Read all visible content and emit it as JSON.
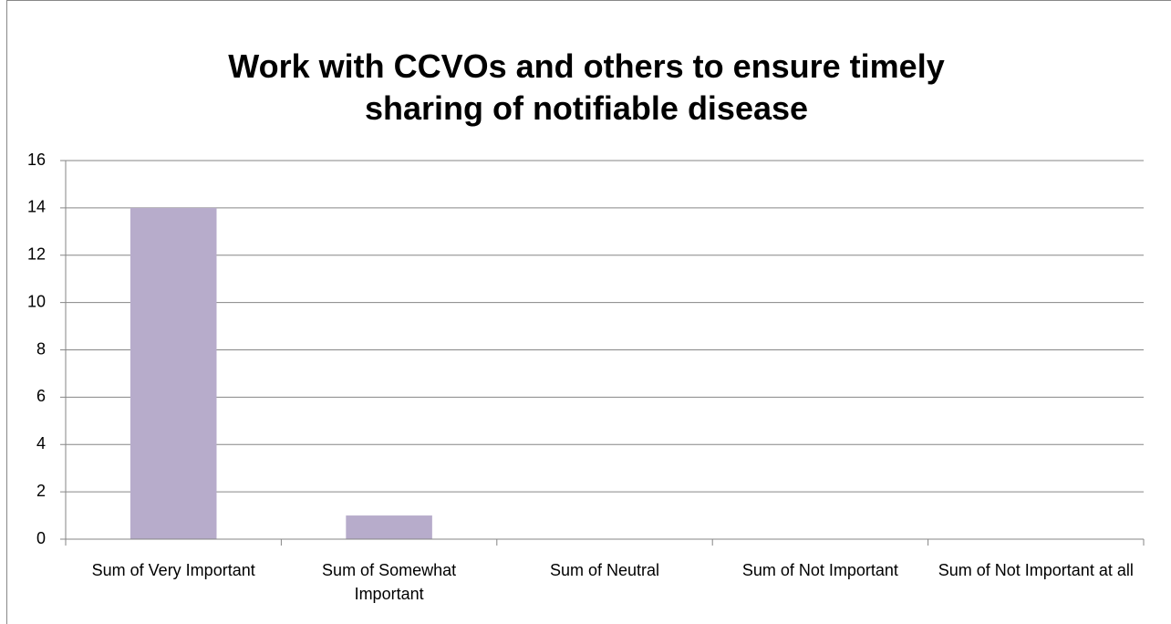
{
  "chart_data": {
    "type": "bar",
    "title": "Work with CCVOs and others to ensure timely sharing of notifiable disease",
    "categories": [
      "Sum of Very Important",
      "Sum of Somewhat Important",
      "Sum of Neutral",
      "Sum of Not Important",
      "Sum of Not Important at all"
    ],
    "values": [
      14,
      1,
      0,
      0,
      0
    ],
    "color": "#b7accb",
    "ylim": [
      0,
      16
    ],
    "yticks": [
      0,
      2,
      4,
      6,
      8,
      10,
      12,
      14,
      16
    ],
    "grid": true
  }
}
